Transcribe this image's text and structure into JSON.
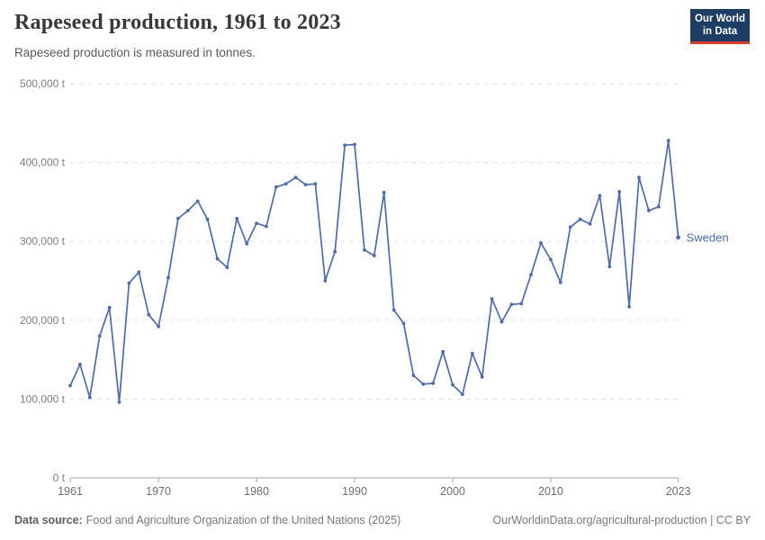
{
  "header": {
    "title": "Rapeseed production, 1961 to 2023",
    "subtitle": "Rapeseed production is measured in tonnes.",
    "logo": {
      "line1": "Our World",
      "line2": "in Data"
    }
  },
  "chart_data": {
    "type": "line",
    "title": "Rapeseed production, 1961 to 2023",
    "unit": "tonnes",
    "grid": "horizontal-dashed",
    "legend": "end-of-line-label",
    "xlim": [
      1961,
      2023
    ],
    "ylim": [
      0,
      500000
    ],
    "yticks": [
      {
        "value": 0,
        "label": "0 t"
      },
      {
        "value": 100000,
        "label": "100,000 t"
      },
      {
        "value": 200000,
        "label": "200,000 t"
      },
      {
        "value": 300000,
        "label": "300,000 t"
      },
      {
        "value": 400000,
        "label": "400,000 t"
      },
      {
        "value": 500000,
        "label": "500,000 t"
      }
    ],
    "xticks": [
      {
        "value": 1961,
        "label": "1961"
      },
      {
        "value": 1970,
        "label": "1970"
      },
      {
        "value": 1980,
        "label": "1980"
      },
      {
        "value": 1990,
        "label": "1990"
      },
      {
        "value": 2000,
        "label": "2000"
      },
      {
        "value": 2010,
        "label": "2010"
      },
      {
        "value": 2023,
        "label": "2023"
      }
    ],
    "series": [
      {
        "name": "Sweden",
        "color": "#4c6cad",
        "x": [
          1961,
          1962,
          1963,
          1964,
          1965,
          1966,
          1967,
          1968,
          1969,
          1970,
          1971,
          1972,
          1973,
          1974,
          1975,
          1976,
          1977,
          1978,
          1979,
          1980,
          1981,
          1982,
          1983,
          1984,
          1985,
          1986,
          1987,
          1988,
          1989,
          1990,
          1991,
          1992,
          1993,
          1994,
          1995,
          1996,
          1997,
          1998,
          1999,
          2000,
          2001,
          2002,
          2003,
          2004,
          2005,
          2006,
          2007,
          2008,
          2009,
          2010,
          2011,
          2012,
          2013,
          2014,
          2015,
          2016,
          2017,
          2018,
          2019,
          2020,
          2021,
          2022,
          2023
        ],
        "values": [
          117000,
          144000,
          102000,
          180000,
          216000,
          96000,
          247000,
          261000,
          207000,
          192000,
          254000,
          329000,
          339000,
          351000,
          328000,
          278000,
          267000,
          329000,
          297000,
          323000,
          319000,
          369000,
          373000,
          381000,
          372000,
          373000,
          250000,
          287000,
          422000,
          423000,
          289000,
          282000,
          362000,
          213000,
          196000,
          130000,
          119000,
          120000,
          160000,
          118000,
          106000,
          158000,
          128000,
          227000,
          198000,
          220000,
          221000,
          258000,
          298000,
          277000,
          248000,
          318000,
          328000,
          322000,
          358000,
          268000,
          363000,
          217000,
          381000,
          339000,
          344000,
          428000,
          305000
        ]
      }
    ]
  },
  "footer": {
    "source_label": "Data source:",
    "source_text": "Food and Agriculture Organization of the United Nations (2025)",
    "credit": "OurWorldinData.org/agricultural-production | CC BY"
  },
  "colors": {
    "line": "#4c6cad",
    "grid": "#e2e2e2",
    "axis": "#a5a5a5",
    "logo_bg": "#1d3d63",
    "logo_bar": "#dc3a2b"
  }
}
